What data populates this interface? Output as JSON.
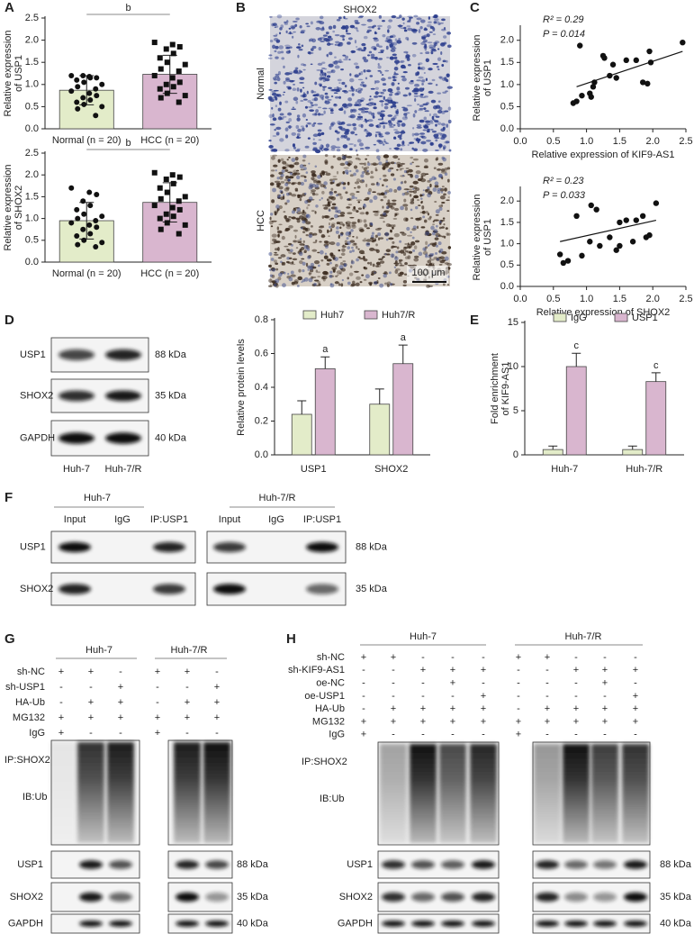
{
  "chart_data": [
    {
      "type": "bar",
      "categories": [
        "Normal (n = 20)",
        "HCC (n = 20)"
      ],
      "values": [
        0.87,
        1.23
      ],
      "errors": [
        0.33,
        0.43
      ],
      "colors": [
        "#e3ecc9",
        "#d9b6cf"
      ],
      "points": [
        [
          1.2,
          1.18,
          1.15,
          1.2,
          1.15,
          1.1,
          1.05,
          1.0,
          0.95,
          0.9,
          0.85,
          0.8,
          0.75,
          0.7,
          0.65,
          0.6,
          0.55,
          0.5,
          0.45,
          0.3
        ],
        [
          1.95,
          1.9,
          1.85,
          1.8,
          1.7,
          1.6,
          1.5,
          1.45,
          1.35,
          1.3,
          1.2,
          1.15,
          1.05,
          1.0,
          0.95,
          0.9,
          0.8,
          0.75,
          0.7,
          0.6
        ]
      ],
      "ylim": [
        0,
        2.5
      ],
      "yticks": [
        {
          "value": 0,
          "label": "0.0"
        },
        0.5,
        {
          "value": 1,
          "label": "1.0"
        },
        1.5,
        {
          "value": 2,
          "label": "2.0"
        },
        2.5
      ],
      "y_label": [
        "Relative expression",
        "of USP1"
      ],
      "significance": "b"
    },
    {
      "type": "bar",
      "categories": [
        "Normal (n = 20)",
        "HCC (n = 20)"
      ],
      "values": [
        0.95,
        1.37
      ],
      "errors": [
        0.42,
        0.45
      ],
      "colors": [
        "#e3ecc9",
        "#d9b6cf"
      ],
      "points": [
        [
          1.7,
          1.6,
          1.55,
          1.4,
          1.3,
          1.2,
          1.1,
          1.05,
          1.0,
          0.95,
          0.9,
          0.85,
          0.8,
          0.75,
          0.65,
          0.6,
          0.5,
          0.45,
          0.4,
          0.35
        ],
        [
          2.05,
          2.0,
          1.95,
          1.9,
          1.8,
          1.7,
          1.6,
          1.5,
          1.45,
          1.4,
          1.3,
          1.25,
          1.2,
          1.1,
          1.05,
          1.0,
          0.9,
          0.85,
          0.75,
          0.65
        ]
      ],
      "ylim": [
        0,
        2.5
      ],
      "yticks": [
        {
          "value": 0,
          "label": "0.0"
        },
        0.5,
        {
          "value": 1,
          "label": "1.0"
        },
        1.5,
        {
          "value": 2,
          "label": "2.0"
        },
        2.5
      ],
      "y_label": [
        "Relative expression",
        "of SHOX2"
      ],
      "significance": "b"
    },
    {
      "type": "scatter",
      "x": [
        0.8,
        0.85,
        0.9,
        0.93,
        1.05,
        1.07,
        1.1,
        1.12,
        1.25,
        1.27,
        1.35,
        1.4,
        1.45,
        1.6,
        1.75,
        1.85,
        1.92,
        1.95,
        1.97,
        2.45
      ],
      "values": [
        0.58,
        0.62,
        1.88,
        0.75,
        0.8,
        0.72,
        0.95,
        1.05,
        1.65,
        1.6,
        1.2,
        1.45,
        1.15,
        1.55,
        1.55,
        1.05,
        1.02,
        1.75,
        1.5,
        1.95
      ],
      "fit": {
        "x": [
          0.85,
          2.45
        ],
        "values": [
          0.95,
          1.75
        ]
      },
      "xlim": [
        0,
        2.5
      ],
      "xticks": [
        {
          "value": 0,
          "label": "0.0"
        },
        0.5,
        {
          "value": 1,
          "label": "1.0"
        },
        1.5,
        {
          "value": 2,
          "label": "2.0"
        },
        2.5
      ],
      "ylim": [
        0,
        2.3
      ],
      "yticks": [
        {
          "value": 0,
          "label": "0.0"
        },
        0.5,
        {
          "value": 1,
          "label": "1.0"
        },
        1.5,
        {
          "value": 2,
          "label": "2.0"
        }
      ],
      "x_label": "Relative expression of KIF9-AS1",
      "y_label": [
        "Relative expression",
        "of USP1"
      ],
      "annotations": [
        "R² = 0.29",
        "P = 0.014"
      ]
    },
    {
      "type": "scatter",
      "x": [
        0.6,
        0.65,
        0.72,
        0.85,
        0.93,
        1.05,
        1.07,
        1.15,
        1.2,
        1.35,
        1.45,
        1.5,
        1.5,
        1.6,
        1.7,
        1.75,
        1.85,
        1.9,
        1.95,
        2.05
      ],
      "values": [
        0.75,
        0.55,
        0.6,
        1.65,
        0.72,
        1.05,
        1.9,
        1.8,
        0.95,
        1.15,
        0.85,
        0.95,
        1.5,
        1.55,
        1.05,
        1.55,
        1.65,
        1.15,
        1.2,
        1.95
      ],
      "fit": {
        "x": [
          0.6,
          2.05
        ],
        "values": [
          1.05,
          1.55
        ]
      },
      "xlim": [
        0,
        2.5
      ],
      "xticks": [
        {
          "value": 0,
          "label": "0.0"
        },
        0.5,
        {
          "value": 1,
          "label": "1.0"
        },
        1.5,
        {
          "value": 2,
          "label": "2.0"
        },
        2.5
      ],
      "ylim": [
        0,
        2.3
      ],
      "yticks": [
        {
          "value": 0,
          "label": "0.0"
        },
        0.5,
        {
          "value": 1,
          "label": "1.0"
        },
        1.5,
        {
          "value": 2,
          "label": "2.0"
        }
      ],
      "x_label": "Relative expression of SHOX2",
      "y_label": [
        "Relative expression",
        "of USP1"
      ],
      "annotations": [
        "R² = 0.23",
        "P = 0.033"
      ]
    },
    {
      "type": "grouped_bar",
      "categories": [
        "USP1",
        "SHOX2"
      ],
      "series": [
        {
          "name": "Huh7",
          "color": "#e3ecc9",
          "values": [
            0.24,
            0.3
          ],
          "errors": [
            0.08,
            0.09
          ]
        },
        {
          "name": "Huh7/R",
          "color": "#d9b6cf",
          "values": [
            0.51,
            0.54
          ],
          "errors": [
            0.07,
            0.11
          ],
          "significance": [
            "a",
            "a"
          ]
        }
      ],
      "ylim": [
        0,
        0.8
      ],
      "yticks": [
        {
          "value": 0,
          "label": "0.0"
        },
        0.2,
        0.4,
        0.6,
        0.8
      ],
      "y_label": [
        "Relative protein levels"
      ],
      "legend": "top"
    },
    {
      "type": "grouped_bar",
      "categories": [
        "Huh-7",
        "Huh-7/R"
      ],
      "series": [
        {
          "name": "IgG",
          "color": "#e3ecc9",
          "values": [
            0.6,
            0.6
          ],
          "errors": [
            0.4,
            0.4
          ]
        },
        {
          "name": "USP1",
          "color": "#d9b6cf",
          "values": [
            10,
            8.3
          ],
          "errors": [
            1.5,
            1.0
          ],
          "significance": [
            "c",
            "c"
          ]
        }
      ],
      "ylim": [
        0,
        15
      ],
      "yticks": [
        0,
        5,
        10,
        15
      ],
      "y_label": [
        "Fold enrichment",
        "of KIF9-AS1"
      ],
      "legend": "top"
    }
  ],
  "panel_labels": [
    "A",
    "B",
    "C",
    "D",
    "E",
    "F",
    "G",
    "H"
  ],
  "panel_b": {
    "title": "SHOX2",
    "rows": [
      "Normal",
      "HCC"
    ],
    "scale_bar": "100 μm"
  },
  "panel_d_blot": {
    "columns": [
      "Huh-7",
      "Huh-7/R"
    ],
    "rows": [
      {
        "label": "USP1",
        "size": "88 kDa"
      },
      {
        "label": "SHOX2",
        "size": "35 kDa"
      },
      {
        "label": "GAPDH",
        "size": "40 kDa"
      }
    ]
  },
  "panel_f": {
    "groups": [
      "Huh-7",
      "Huh-7/R"
    ],
    "lanes": [
      "Input",
      "IgG",
      "IP:USP1",
      "Input",
      "IgG",
      "IP:USP1"
    ],
    "rows": [
      {
        "label": "USP1",
        "size": "88 kDa"
      },
      {
        "label": "SHOX2",
        "size": "35 kDa"
      }
    ]
  },
  "panel_g": {
    "groups": [
      "Huh-7",
      "Huh-7/R"
    ],
    "conditions": [
      {
        "label": "sh-NC",
        "signs": [
          "+",
          "+",
          "-",
          "+",
          "+",
          "-"
        ]
      },
      {
        "label": "sh-USP1",
        "signs": [
          "-",
          "-",
          "+",
          "-",
          "-",
          "+"
        ]
      },
      {
        "label": "HA-Ub",
        "signs": [
          "-",
          "+",
          "+",
          "-",
          "+",
          "+"
        ]
      },
      {
        "label": "MG132",
        "signs": [
          "+",
          "+",
          "+",
          "+",
          "+",
          "+"
        ]
      },
      {
        "label": "IgG",
        "signs": [
          "+",
          "-",
          "-",
          "+",
          "-",
          "-"
        ]
      }
    ],
    "ip_label": "IP:SHOX2",
    "ib_label": "IB:Ub",
    "rows": [
      {
        "label": "USP1",
        "size": "88 kDa"
      },
      {
        "label": "SHOX2",
        "size": "35 kDa"
      },
      {
        "label": "GAPDH",
        "size": "40 kDa"
      }
    ]
  },
  "panel_h": {
    "groups": [
      "Huh-7",
      "Huh-7/R"
    ],
    "conditions": [
      {
        "label": "sh-NC",
        "signs": [
          "+",
          "+",
          "-",
          "-",
          "-",
          "+",
          "+",
          "-",
          "-",
          "-"
        ]
      },
      {
        "label": "sh-KIF9-AS1",
        "signs": [
          "-",
          "-",
          "+",
          "+",
          "+",
          "-",
          "-",
          "+",
          "+",
          "+"
        ]
      },
      {
        "label": "oe-NC",
        "signs": [
          "-",
          "-",
          "-",
          "+",
          "-",
          "-",
          "-",
          "-",
          "+",
          "-"
        ]
      },
      {
        "label": "oe-USP1",
        "signs": [
          "-",
          "-",
          "-",
          "-",
          "+",
          "-",
          "-",
          "-",
          "-",
          "+"
        ]
      },
      {
        "label": "HA-Ub",
        "signs": [
          "-",
          "+",
          "+",
          "+",
          "+",
          "-",
          "+",
          "+",
          "+",
          "+"
        ]
      },
      {
        "label": "MG132",
        "signs": [
          "+",
          "+",
          "+",
          "+",
          "+",
          "+",
          "+",
          "+",
          "+",
          "+"
        ]
      },
      {
        "label": "IgG",
        "signs": [
          "+",
          "-",
          "-",
          "-",
          "-",
          "+",
          "-",
          "-",
          "-",
          "-"
        ]
      }
    ],
    "ip_label": "IP:SHOX2",
    "ib_label": "IB:Ub",
    "rows": [
      {
        "label": "USP1",
        "size": "88 kDa"
      },
      {
        "label": "SHOX2",
        "size": "35 kDa"
      },
      {
        "label": "GAPDH",
        "size": "40 kDa"
      }
    ]
  }
}
